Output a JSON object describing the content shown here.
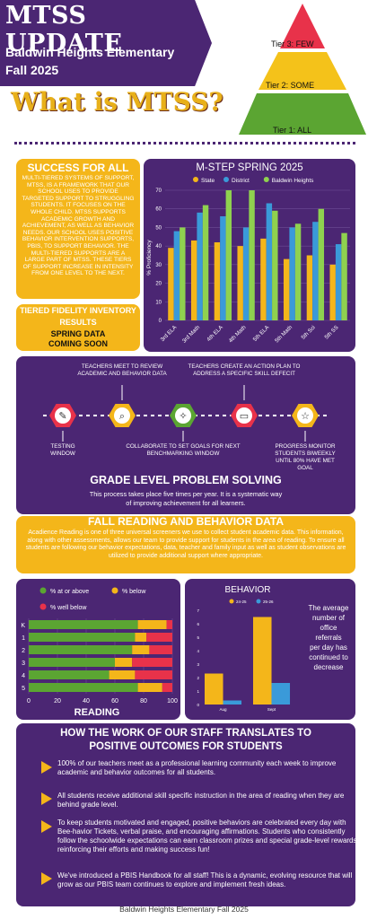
{
  "header": {
    "title": "MTSS UPDATE",
    "school": "Baldwin Heights Elementary",
    "term": "Fall 2025",
    "subtitle": "What is MTSS?"
  },
  "pyramid": {
    "tiers": [
      {
        "label": "Tier 3: FEW",
        "color": "#e8324a"
      },
      {
        "label": "Tier 2: SOME",
        "color": "#f4c21a"
      },
      {
        "label": "Tier 1: ALL",
        "color": "#5ba532"
      }
    ]
  },
  "success": {
    "title": "SUCCESS FOR ALL",
    "body": "Multi-tiered Systems of Support, MTSS, is a framework that our school uses to provide targeted support to struggling students. It focuses on the whole child. MTSS supports academic growth and achievement, as well as behavior needs. Our school uses Positive Behavior Intervention Supports, PBIS, to support behavior. The multi-tiered supports are a large part of MTSS. These tiers of support increase in intensity from one level to the next."
  },
  "tiered": {
    "title": "TIERED FIDELITY INVENTORY RESULTS",
    "body_line1": "SPRING DATA",
    "body_line2": "COMING SOON"
  },
  "colors": {
    "purple": "#4b2673",
    "gold": "#f4b61a",
    "state": "#f4b61a",
    "district": "#3a9ad9",
    "baldwin": "#8fd14f",
    "at_or_above": "#5ba532",
    "below": "#f4b61a",
    "well_below": "#e8324a"
  },
  "process": {
    "heading": "GRADE LEVEL PROBLEM SOLVING",
    "description": "This process takes place five times per year. It is a systematic way of improving achievement for all learners.",
    "steps_top": [
      "TEACHERS MEET TO REVIEW ACADEMIC AND BEHAVIOR DATA",
      "TEACHERS CREATE AN ACTION PLAN TO ADDRESS A SPECIFIC SKILL DEFECIT"
    ],
    "steps_bottom": [
      "TESTING WINDOW",
      "COLLABORATE TO SET GOALS FOR NEXT BENCHMARKING WINDOW",
      "PROGRESS MONITOR STUDENTS BIWEEKLY UNTIL 80% HAVE MET GOAL"
    ],
    "icons": [
      "pencil-icon",
      "magnifier-icon",
      "lightbulb-icon",
      "laptop-icon",
      "star-icon"
    ]
  },
  "fall": {
    "title": "FALL READING AND BEHAVIOR DATA",
    "body": "Acadience Reading is one of three universal screeners we use to collect student academic data. This information, along with other assessments, allows our team to provide support for students in the area of reading. To ensure all students are following our behavior expectations, data, teacher and family input as well as student observations are utilized to provide additional support where appropriate."
  },
  "outcomes": {
    "title_line1": "HOW THE WORK OF OUR STAFF TRANSLATES TO",
    "title_line2": "POSITIVE OUTCOMES FOR STUDENTS",
    "items": [
      "100% of our teachers meet as a professional learning community each week to improve academic and behavior outcomes for all students.",
      "All students receive additional skill specific instruction in the area of reading when they are behind grade level.",
      "To keep students motivated and engaged, positive behaviors are celebrated every day with Bee-havior Tickets, verbal praise, and encouraging affirmations. Students who consistently follow the schoolwide expectations can earn classroom prizes and special grade-level rewards, reinforcing their efforts and making success fun!",
      "We've introduced a PBIS Handbook for all staff! This is a dynamic, evolving resource that will grow as our PBIS team continues to explore and implement fresh ideas."
    ]
  },
  "footer": "Baldwin Heights Elementary Fall 2025",
  "chart_data": [
    {
      "type": "bar",
      "title": "M-STEP SPRING 2025",
      "categories": [
        "3rd ELA",
        "3rd Math",
        "4th ELA",
        "4th Math",
        "5th ELA",
        "5th Math",
        "5th Sci",
        "5th SS"
      ],
      "series": [
        {
          "name": "State",
          "values": [
            39,
            43,
            42,
            40,
            44,
            33,
            35,
            30
          ]
        },
        {
          "name": "District",
          "values": [
            48,
            58,
            56,
            50,
            63,
            50,
            53,
            41
          ]
        },
        {
          "name": "Baldwin Heights",
          "values": [
            50,
            62,
            70,
            70,
            59,
            52,
            60,
            47
          ]
        }
      ],
      "xlabel": "",
      "ylabel": "% Proficiency",
      "ylim": [
        0,
        70
      ],
      "yticks": [
        0,
        10,
        20,
        30,
        40,
        50,
        60,
        70
      ],
      "legend": "top",
      "grid": true
    },
    {
      "type": "bar",
      "stacked": "horizontal",
      "title": "",
      "xlabel": "READING",
      "categories": [
        "K",
        "1",
        "2",
        "3",
        "4",
        "5"
      ],
      "series": [
        {
          "name": "% at or above",
          "values": [
            76,
            74,
            72,
            60,
            56,
            76
          ]
        },
        {
          "name": "% below",
          "values": [
            20,
            8,
            12,
            12,
            18,
            17
          ]
        },
        {
          "name": "% well below",
          "values": [
            4,
            18,
            16,
            28,
            26,
            7
          ]
        }
      ],
      "xlim": [
        0,
        100
      ],
      "xticks": [
        0,
        20,
        40,
        60,
        80,
        100
      ],
      "legend": "top",
      "grid": true
    },
    {
      "type": "bar",
      "title": "BEHAVIOR",
      "categories": [
        "Aug",
        "Sept"
      ],
      "series": [
        {
          "name": "24-25",
          "values": [
            2.3,
            6.5
          ]
        },
        {
          "name": "25-26",
          "values": [
            0.3,
            1.6
          ]
        }
      ],
      "ylim": [
        0,
        7
      ],
      "yticks": [
        0,
        1,
        2,
        3,
        4,
        5,
        6,
        7
      ],
      "annotation": "The average number of office referrals per day has continued to decrease",
      "legend": "top"
    }
  ]
}
